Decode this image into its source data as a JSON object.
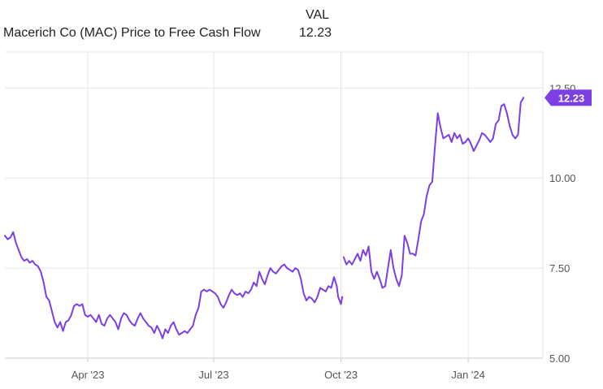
{
  "legend": {
    "column_header": "VAL",
    "series_name": "Macerich Co (MAC) Price to Free Cash Flow",
    "series_value": "12.23"
  },
  "colors": {
    "line": "#7b3fe4",
    "callout": "#7b3fe4",
    "grid": "#e6e6e6",
    "axis": "#cccccc",
    "tick_text": "#555555"
  },
  "chart_data": {
    "type": "line",
    "title": "",
    "xlabel": "",
    "ylabel": "",
    "x_range": [
      "2023-01-31",
      "2024-02-24"
    ],
    "ylim": [
      5.0,
      13.5
    ],
    "y_axis_position": "right",
    "grid": true,
    "x_ticks": [
      {
        "date": "2023-04-01",
        "label": "Apr '23"
      },
      {
        "date": "2023-07-01",
        "label": "Jul '23"
      },
      {
        "date": "2023-10-01",
        "label": "Oct '23"
      },
      {
        "date": "2024-01-01",
        "label": "Jan '24"
      }
    ],
    "y_ticks": [
      {
        "value": 5.0,
        "label": "5.00"
      },
      {
        "value": 7.5,
        "label": "7.50"
      },
      {
        "value": 10.0,
        "label": "10.00"
      },
      {
        "value": 12.5,
        "label": "12.50"
      }
    ],
    "last_value_label": "12.23",
    "series": [
      {
        "name": "Macerich Co (MAC) Price to Free Cash Flow",
        "segments": [
          [
            [
              "2023-01-31",
              8.4
            ],
            [
              "2023-02-02",
              8.3
            ],
            [
              "2023-02-04",
              8.35
            ],
            [
              "2023-02-06",
              8.5
            ],
            [
              "2023-02-08",
              8.2
            ],
            [
              "2023-02-10",
              8.0
            ],
            [
              "2023-02-12",
              7.8
            ],
            [
              "2023-02-14",
              7.7
            ],
            [
              "2023-02-16",
              7.75
            ],
            [
              "2023-02-18",
              7.65
            ],
            [
              "2023-02-20",
              7.7
            ],
            [
              "2023-02-22",
              7.6
            ],
            [
              "2023-02-24",
              7.55
            ],
            [
              "2023-02-26",
              7.4
            ],
            [
              "2023-02-28",
              7.1
            ],
            [
              "2023-03-02",
              6.7
            ],
            [
              "2023-03-04",
              6.6
            ],
            [
              "2023-03-06",
              6.3
            ],
            [
              "2023-03-08",
              6.0
            ],
            [
              "2023-03-10",
              5.85
            ],
            [
              "2023-03-12",
              6.0
            ],
            [
              "2023-03-14",
              5.75
            ],
            [
              "2023-03-16",
              6.0
            ],
            [
              "2023-03-18",
              6.05
            ],
            [
              "2023-03-20",
              6.2
            ],
            [
              "2023-03-22",
              6.45
            ],
            [
              "2023-03-24",
              6.5
            ],
            [
              "2023-03-26",
              6.45
            ],
            [
              "2023-03-28",
              6.5
            ],
            [
              "2023-03-30",
              6.2
            ],
            [
              "2023-04-01",
              6.15
            ],
            [
              "2023-04-03",
              6.2
            ],
            [
              "2023-04-05",
              6.1
            ],
            [
              "2023-04-07",
              6.0
            ],
            [
              "2023-04-09",
              6.2
            ],
            [
              "2023-04-11",
              5.95
            ],
            [
              "2023-04-13",
              5.9
            ],
            [
              "2023-04-15",
              6.1
            ],
            [
              "2023-04-17",
              6.2
            ],
            [
              "2023-04-19",
              6.1
            ],
            [
              "2023-04-21",
              6.0
            ],
            [
              "2023-04-23",
              5.8
            ],
            [
              "2023-04-25",
              6.1
            ],
            [
              "2023-04-27",
              6.25
            ],
            [
              "2023-04-29",
              6.2
            ],
            [
              "2023-05-01",
              6.05
            ],
            [
              "2023-05-03",
              5.95
            ],
            [
              "2023-05-05",
              5.9
            ],
            [
              "2023-05-07",
              6.1
            ],
            [
              "2023-05-09",
              6.25
            ],
            [
              "2023-05-11",
              6.1
            ],
            [
              "2023-05-13",
              6.0
            ],
            [
              "2023-05-15",
              5.9
            ],
            [
              "2023-05-17",
              5.85
            ],
            [
              "2023-05-19",
              5.7
            ],
            [
              "2023-05-21",
              5.9
            ],
            [
              "2023-05-23",
              5.75
            ],
            [
              "2023-05-25",
              5.55
            ],
            [
              "2023-05-27",
              5.8
            ],
            [
              "2023-05-29",
              5.7
            ],
            [
              "2023-05-31",
              5.9
            ],
            [
              "2023-06-02",
              6.0
            ],
            [
              "2023-06-04",
              5.8
            ],
            [
              "2023-06-06",
              5.65
            ],
            [
              "2023-06-08",
              5.7
            ],
            [
              "2023-06-10",
              5.75
            ],
            [
              "2023-06-12",
              5.7
            ],
            [
              "2023-06-14",
              5.8
            ],
            [
              "2023-06-16",
              5.9
            ],
            [
              "2023-06-18",
              6.2
            ],
            [
              "2023-06-20",
              6.4
            ],
            [
              "2023-06-22",
              6.85
            ],
            [
              "2023-06-24",
              6.9
            ],
            [
              "2023-06-26",
              6.85
            ],
            [
              "2023-06-28",
              6.9
            ],
            [
              "2023-06-30",
              6.85
            ],
            [
              "2023-07-02",
              6.8
            ],
            [
              "2023-07-04",
              6.7
            ],
            [
              "2023-07-06",
              6.5
            ],
            [
              "2023-07-08",
              6.4
            ],
            [
              "2023-07-10",
              6.55
            ],
            [
              "2023-07-12",
              6.75
            ],
            [
              "2023-07-14",
              6.9
            ],
            [
              "2023-07-16",
              6.8
            ],
            [
              "2023-07-18",
              6.75
            ],
            [
              "2023-07-20",
              6.8
            ],
            [
              "2023-07-22",
              6.7
            ],
            [
              "2023-07-24",
              6.85
            ],
            [
              "2023-07-26",
              6.8
            ],
            [
              "2023-07-28",
              6.9
            ],
            [
              "2023-07-30",
              7.1
            ],
            [
              "2023-08-01",
              7.0
            ],
            [
              "2023-08-03",
              7.4
            ],
            [
              "2023-08-05",
              7.2
            ],
            [
              "2023-08-07",
              7.05
            ],
            [
              "2023-08-09",
              7.3
            ],
            [
              "2023-08-11",
              7.5
            ],
            [
              "2023-08-13",
              7.4
            ],
            [
              "2023-08-15",
              7.35
            ],
            [
              "2023-08-17",
              7.45
            ],
            [
              "2023-08-19",
              7.55
            ],
            [
              "2023-08-21",
              7.6
            ],
            [
              "2023-08-23",
              7.5
            ],
            [
              "2023-08-25",
              7.45
            ],
            [
              "2023-08-27",
              7.4
            ],
            [
              "2023-08-29",
              7.5
            ],
            [
              "2023-08-31",
              7.45
            ],
            [
              "2023-09-02",
              7.2
            ],
            [
              "2023-09-04",
              6.8
            ],
            [
              "2023-09-06",
              6.6
            ],
            [
              "2023-09-08",
              6.7
            ],
            [
              "2023-09-10",
              6.65
            ],
            [
              "2023-09-12",
              6.55
            ],
            [
              "2023-09-14",
              6.7
            ],
            [
              "2023-09-16",
              6.95
            ],
            [
              "2023-09-18",
              6.9
            ],
            [
              "2023-09-20",
              6.85
            ],
            [
              "2023-09-22",
              7.0
            ],
            [
              "2023-09-24",
              6.95
            ],
            [
              "2023-09-26",
              7.25
            ],
            [
              "2023-09-28",
              7.0
            ],
            [
              "2023-09-29",
              6.7
            ],
            [
              "2023-09-30",
              6.6
            ],
            [
              "2023-10-01",
              6.5
            ],
            [
              "2023-10-02",
              6.7
            ]
          ],
          [
            [
              "2023-10-03",
              7.8
            ],
            [
              "2023-10-05",
              7.6
            ],
            [
              "2023-10-07",
              7.7
            ],
            [
              "2023-10-09",
              7.6
            ],
            [
              "2023-10-11",
              7.75
            ],
            [
              "2023-10-13",
              7.9
            ],
            [
              "2023-10-15",
              7.7
            ],
            [
              "2023-10-17",
              8.0
            ],
            [
              "2023-10-19",
              7.85
            ],
            [
              "2023-10-21",
              8.1
            ],
            [
              "2023-10-23",
              7.4
            ],
            [
              "2023-10-25",
              7.2
            ],
            [
              "2023-10-27",
              7.4
            ],
            [
              "2023-10-29",
              7.2
            ],
            [
              "2023-10-31",
              6.95
            ],
            [
              "2023-11-02",
              7.0
            ],
            [
              "2023-11-04",
              7.5
            ],
            [
              "2023-11-06",
              8.0
            ],
            [
              "2023-11-08",
              7.5
            ],
            [
              "2023-11-10",
              7.2
            ],
            [
              "2023-11-12",
              7.0
            ],
            [
              "2023-11-14",
              7.3
            ],
            [
              "2023-11-16",
              8.4
            ],
            [
              "2023-11-18",
              8.2
            ],
            [
              "2023-11-20",
              7.9
            ],
            [
              "2023-11-22",
              7.9
            ],
            [
              "2023-11-24",
              7.85
            ],
            [
              "2023-11-26",
              8.3
            ],
            [
              "2023-11-28",
              8.8
            ],
            [
              "2023-11-30",
              9.0
            ],
            [
              "2023-12-02",
              9.5
            ],
            [
              "2023-12-04",
              9.8
            ],
            [
              "2023-12-06",
              9.9
            ],
            [
              "2023-12-08",
              10.9
            ],
            [
              "2023-12-10",
              11.8
            ],
            [
              "2023-12-12",
              11.4
            ],
            [
              "2023-12-14",
              11.1
            ],
            [
              "2023-12-16",
              11.15
            ],
            [
              "2023-12-18",
              11.2
            ],
            [
              "2023-12-20",
              11.0
            ],
            [
              "2023-12-22",
              11.25
            ],
            [
              "2023-12-24",
              11.1
            ],
            [
              "2023-12-26",
              11.2
            ],
            [
              "2023-12-28",
              10.95
            ],
            [
              "2023-12-30",
              11.0
            ],
            [
              "2024-01-01",
              11.1
            ],
            [
              "2024-01-03",
              10.95
            ],
            [
              "2024-01-05",
              10.75
            ],
            [
              "2024-01-07",
              10.9
            ],
            [
              "2024-01-09",
              11.05
            ],
            [
              "2024-01-11",
              11.25
            ],
            [
              "2024-01-13",
              11.2
            ],
            [
              "2024-01-15",
              11.1
            ],
            [
              "2024-01-17",
              11.0
            ],
            [
              "2024-01-19",
              11.1
            ],
            [
              "2024-01-21",
              11.5
            ],
            [
              "2024-01-23",
              11.6
            ],
            [
              "2024-01-25",
              12.0
            ],
            [
              "2024-01-27",
              12.05
            ],
            [
              "2024-01-29",
              11.8
            ],
            [
              "2024-01-31",
              11.45
            ],
            [
              "2024-02-02",
              11.2
            ],
            [
              "2024-02-04",
              11.1
            ],
            [
              "2024-02-06",
              11.2
            ],
            [
              "2024-02-08",
              12.1
            ],
            [
              "2024-02-10",
              12.23
            ]
          ]
        ]
      }
    ]
  }
}
